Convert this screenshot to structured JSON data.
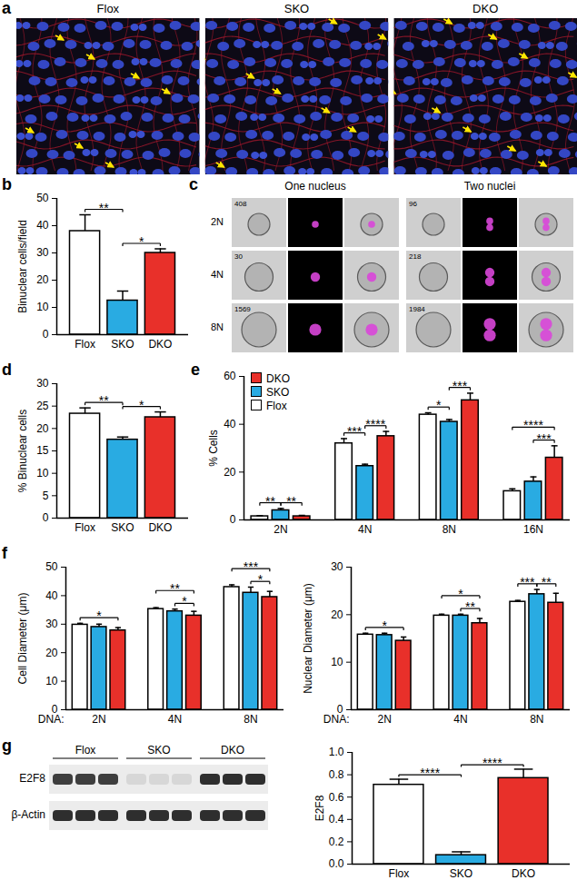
{
  "chart_data": [
    {
      "panel": "a",
      "type": "image",
      "labels": [
        "Flox",
        "SKO",
        "DKO"
      ]
    },
    {
      "panel": "b",
      "type": "bar",
      "ylabel": "Binuclear cells/field",
      "categories": [
        "Flox",
        "SKO",
        "DKO"
      ],
      "values": [
        38,
        12.5,
        30
      ],
      "errors": [
        6,
        3.5,
        1.5
      ],
      "colors": [
        "#ffffff",
        "#29abe2",
        "#e8302a"
      ],
      "ylim": [
        0,
        50
      ],
      "yticks": [
        0,
        10,
        20,
        30,
        40,
        50
      ],
      "significance": [
        {
          "from": "Flox",
          "to": "SKO",
          "label": "**"
        },
        {
          "from": "SKO",
          "to": "DKO",
          "label": "*"
        }
      ]
    },
    {
      "panel": "c",
      "type": "image",
      "columns": [
        "One nucleus",
        "Two nuclei"
      ],
      "rows": [
        "2N",
        "4N",
        "8N"
      ],
      "counts": [
        [
          408,
          96
        ],
        [
          30,
          218
        ],
        [
          1569,
          1984
        ]
      ]
    },
    {
      "panel": "d",
      "type": "bar",
      "ylabel": "% Binuclear cells",
      "categories": [
        "Flox",
        "SKO",
        "DKO"
      ],
      "values": [
        23.3,
        17.5,
        22.5
      ],
      "errors": [
        1.3,
        0.6,
        1.2
      ],
      "colors": [
        "#ffffff",
        "#29abe2",
        "#e8302a"
      ],
      "ylim": [
        0,
        30
      ],
      "yticks": [
        0,
        5,
        10,
        15,
        20,
        25,
        30
      ],
      "significance": [
        {
          "from": "Flox",
          "to": "SKO",
          "label": "**"
        },
        {
          "from": "SKO",
          "to": "DKO",
          "label": "*"
        }
      ]
    },
    {
      "panel": "e",
      "type": "bar",
      "ylabel": "% Cells",
      "legend": "top-left",
      "categories": [
        "2N",
        "4N",
        "8N",
        "16N"
      ],
      "series": [
        {
          "name": "Flox",
          "color": "#ffffff",
          "values": [
            1.5,
            32,
            44,
            12
          ],
          "errors": [
            0.3,
            2,
            0.8,
            1
          ]
        },
        {
          "name": "SKO",
          "color": "#29abe2",
          "values": [
            4,
            22.5,
            41,
            16
          ],
          "errors": [
            0.8,
            0.8,
            1,
            2
          ]
        },
        {
          "name": "DKO",
          "color": "#e8302a",
          "values": [
            1.5,
            35,
            50,
            26
          ],
          "errors": [
            0.4,
            2,
            3,
            5
          ]
        }
      ],
      "ylim": [
        0,
        60
      ],
      "yticks": [
        0,
        20,
        40,
        60
      ],
      "significance": [
        {
          "group": "2N",
          "from": "Flox",
          "to": "SKO",
          "label": "**"
        },
        {
          "group": "2N",
          "from": "SKO",
          "to": "DKO",
          "label": "**"
        },
        {
          "group": "4N",
          "from": "Flox",
          "to": "SKO",
          "label": "***"
        },
        {
          "group": "4N",
          "from": "SKO",
          "to": "DKO",
          "label": "****"
        },
        {
          "group": "8N",
          "from": "Flox",
          "to": "SKO",
          "label": "*"
        },
        {
          "group": "8N",
          "from": "SKO",
          "to": "DKO",
          "label": "***"
        },
        {
          "group": "16N",
          "from": "Flox",
          "to": "DKO",
          "label": "****"
        },
        {
          "group": "16N",
          "from": "SKO",
          "to": "DKO",
          "label": "***"
        }
      ]
    },
    {
      "panel": "f",
      "type": "bar",
      "ylabel": "Cell Diameter (μm)",
      "xlabel": "DNA:",
      "categories": [
        "2N",
        "4N",
        "8N"
      ],
      "series": [
        {
          "name": "Flox",
          "color": "#ffffff",
          "values": [
            29.8,
            35.3,
            43
          ],
          "errors": [
            0.5,
            0.5,
            0.8
          ]
        },
        {
          "name": "SKO",
          "color": "#29abe2",
          "values": [
            29,
            34.5,
            41
          ],
          "errors": [
            1,
            0.8,
            2
          ]
        },
        {
          "name": "DKO",
          "color": "#e8302a",
          "values": [
            27.8,
            33,
            39.5
          ],
          "errors": [
            1,
            1.5,
            2
          ]
        }
      ],
      "ylim": [
        0,
        50
      ],
      "yticks": [
        0,
        10,
        20,
        30,
        40,
        50
      ],
      "significance": [
        {
          "group": "2N",
          "from": "Flox",
          "to": "DKO",
          "label": "*"
        },
        {
          "group": "4N",
          "from": "Flox",
          "to": "DKO",
          "label": "**"
        },
        {
          "group": "4N",
          "from": "SKO",
          "to": "DKO",
          "label": "*"
        },
        {
          "group": "8N",
          "from": "Flox",
          "to": "DKO",
          "label": "***"
        },
        {
          "group": "8N",
          "from": "SKO",
          "to": "DKO",
          "label": "*"
        }
      ]
    },
    {
      "panel": "f",
      "type": "bar",
      "ylabel": "Nuclear Diameter (μm)",
      "xlabel": "DNA:",
      "categories": [
        "2N",
        "4N",
        "8N"
      ],
      "series": [
        {
          "name": "Flox",
          "color": "#ffffff",
          "values": [
            15.8,
            19.8,
            22.7
          ],
          "errors": [
            0.3,
            0.3,
            0.3
          ]
        },
        {
          "name": "SKO",
          "color": "#29abe2",
          "values": [
            15.7,
            19.8,
            24.3
          ],
          "errors": [
            0.4,
            0.3,
            1
          ]
        },
        {
          "name": "DKO",
          "color": "#e8302a",
          "values": [
            14.5,
            18.2,
            22.5
          ],
          "errors": [
            0.8,
            1,
            2
          ]
        }
      ],
      "ylim": [
        0,
        30
      ],
      "yticks": [
        0,
        10,
        20,
        30
      ],
      "significance": [
        {
          "group": "2N",
          "from": "Flox",
          "to": "DKO",
          "label": "*"
        },
        {
          "group": "4N",
          "from": "Flox",
          "to": "DKO",
          "label": "*"
        },
        {
          "group": "4N",
          "from": "SKO",
          "to": "DKO",
          "label": "**"
        },
        {
          "group": "8N",
          "from": "Flox",
          "to": "SKO",
          "label": "***"
        },
        {
          "group": "8N",
          "from": "SKO",
          "to": "DKO",
          "label": "**"
        }
      ]
    },
    {
      "panel": "g",
      "type": "image",
      "columns": [
        "Flox",
        "SKO",
        "DKO"
      ],
      "rows": [
        "E2F8",
        "β-Actin"
      ]
    },
    {
      "panel": "g",
      "type": "bar",
      "ylabel": "E2F8",
      "categories": [
        "Flox",
        "SKO",
        "DKO"
      ],
      "values": [
        0.71,
        0.08,
        0.77
      ],
      "errors": [
        0.05,
        0.03,
        0.08
      ],
      "colors": [
        "#ffffff",
        "#29abe2",
        "#e8302a"
      ],
      "ylim": [
        0,
        1
      ],
      "yticks": [
        {
          "value": 0,
          "label": "0.0"
        },
        0.2,
        0.4,
        0.6,
        0.8,
        {
          "value": 1,
          "label": "1.0"
        }
      ],
      "significance": [
        {
          "from": "Flox",
          "to": "SKO",
          "label": "****"
        },
        {
          "from": "SKO",
          "to": "DKO",
          "label": "****"
        }
      ]
    }
  ]
}
